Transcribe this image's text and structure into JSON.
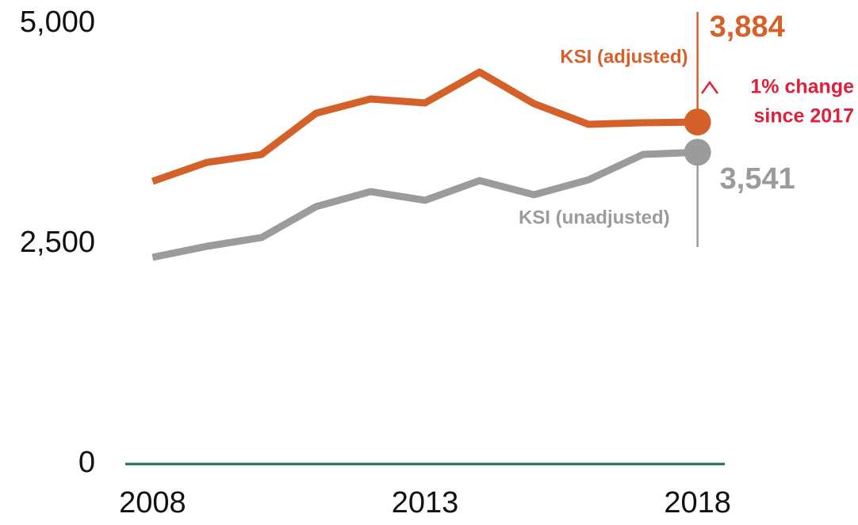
{
  "chart_data": {
    "type": "line",
    "x": [
      2008,
      2009,
      2010,
      2011,
      2012,
      2013,
      2014,
      2015,
      2016,
      2017,
      2018
    ],
    "series": [
      {
        "name": "KSI (adjusted)",
        "color": "#d4612a",
        "values": [
          3210,
          3426,
          3516,
          3984,
          4146,
          4101,
          4451,
          4092,
          3858,
          3876,
          3884
        ],
        "value_labels": [
          null,
          null,
          null,
          null,
          null,
          null,
          null,
          null,
          null,
          null,
          "3,884"
        ]
      },
      {
        "name": "KSI (unadjusted)",
        "color": "#9b9b9d",
        "values": [
          2347,
          2473,
          2572,
          2923,
          3094,
          2995,
          3219,
          3058,
          3228,
          3516,
          3541
        ],
        "value_labels": [
          null,
          null,
          null,
          null,
          null,
          null,
          null,
          null,
          null,
          null,
          "3,541"
        ]
      }
    ],
    "annotation": [
      "1% change",
      "since 2017"
    ],
    "xlim": [
      2007.5,
      2018.5
    ],
    "xticks": [
      2008,
      2013,
      2018
    ],
    "ylim": [
      0,
      5000
    ],
    "yticks": [
      0,
      {
        "value": 2500,
        "label": "2,500"
      },
      {
        "value": 5000,
        "label": "5,000"
      }
    ],
    "grid": false
  }
}
